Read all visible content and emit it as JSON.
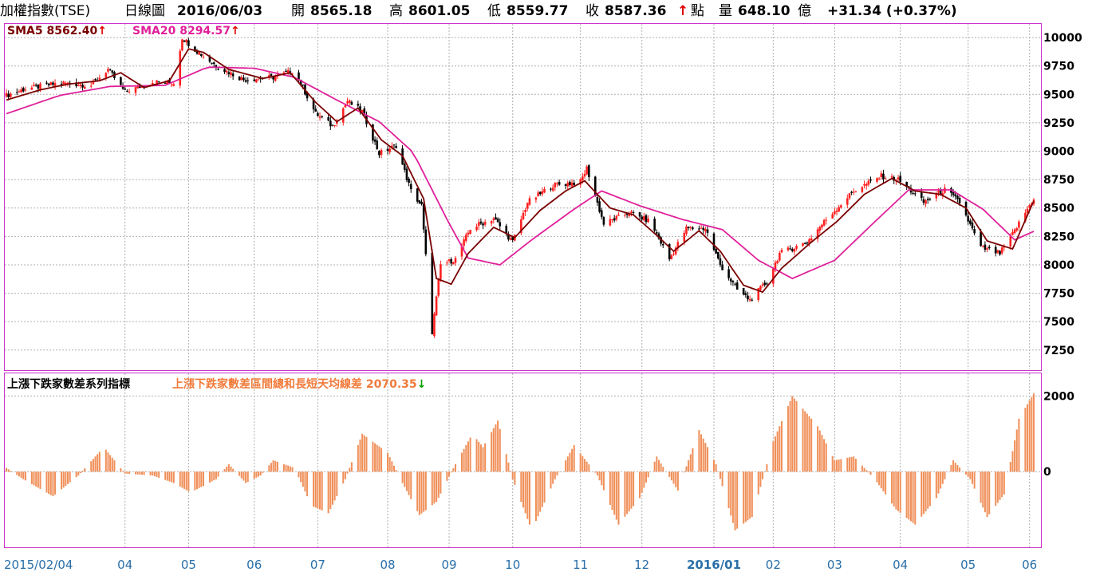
{
  "header": {
    "title": "加權指數(TSE)",
    "period": "日線圖",
    "date": "2016/06/03",
    "open_label": "開",
    "open": "8565.18",
    "high_label": "高",
    "high": "8601.05",
    "low_label": "低",
    "low": "8559.77",
    "close_label": "收",
    "close": "8587.36",
    "up_arrow": "↑",
    "point_label": "點",
    "volume_label": "量",
    "volume": "648.10",
    "volume_unit": "億",
    "change": "+31.34 (+0.37%)"
  },
  "legend_main": {
    "sma5_label": "SMA5 8562.40",
    "sma20_label": "SMA20 8294.57",
    "arrow": "↑"
  },
  "legend_sub": {
    "name": "上漲下跌家數差系列指標",
    "series_label": "上漲下跌家數差區間總和長短天均線差 2070.35",
    "arrow": "↓"
  },
  "colors": {
    "up_candle": "#ff2020",
    "down_candle": "#000000",
    "sma5": "#7a0000",
    "sma20": "#e0209a",
    "histogram": "#f0905a",
    "grid": "#b0b0b0",
    "border": "#cc33cc",
    "date_axis": "#2a6fa8",
    "down_arrow": "#00a000"
  },
  "chart_data": [
    {
      "type": "candlestick",
      "title": "加權指數(TSE) 日線圖",
      "yticks": [
        10000,
        9750,
        9500,
        9250,
        9000,
        8750,
        8500,
        8250,
        8000,
        7750,
        7500,
        7250
      ],
      "ylim": [
        7080,
        10120
      ],
      "x_start": "2015-02-04",
      "x_end": "2016-06-03",
      "xticks": [
        {
          "date": "2015-02-04",
          "label": "2015/02/04"
        },
        {
          "date": "2015-04-01",
          "label": "04"
        },
        {
          "date": "2015-05-01",
          "label": "05"
        },
        {
          "date": "2015-06-01",
          "label": "06"
        },
        {
          "date": "2015-07-01",
          "label": "07"
        },
        {
          "date": "2015-08-03",
          "label": "08"
        },
        {
          "date": "2015-09-01",
          "label": "09"
        },
        {
          "date": "2015-10-01",
          "label": "10"
        },
        {
          "date": "2015-11-02",
          "label": "11"
        },
        {
          "date": "2015-12-01",
          "label": "12"
        },
        {
          "date": "2016-01-04",
          "label": "2016/01"
        },
        {
          "date": "2016-02-01",
          "label": "02"
        },
        {
          "date": "2016-03-01",
          "label": "03"
        },
        {
          "date": "2016-04-01",
          "label": "04"
        },
        {
          "date": "2016-05-03",
          "label": "05"
        },
        {
          "date": "2016-06-01",
          "label": "06"
        }
      ],
      "close_path": [
        [
          "2015-02-04",
          9490
        ],
        [
          "2015-02-13",
          9550
        ],
        [
          "2015-03-02",
          9600
        ],
        [
          "2015-03-16",
          9580
        ],
        [
          "2015-03-24",
          9720
        ],
        [
          "2015-04-01",
          9520
        ],
        [
          "2015-04-14",
          9610
        ],
        [
          "2015-04-24",
          9600
        ],
        [
          "2015-04-28",
          10000
        ],
        [
          "2015-05-05",
          9880
        ],
        [
          "2015-05-15",
          9740
        ],
        [
          "2015-05-27",
          9630
        ],
        [
          "2015-06-10",
          9650
        ],
        [
          "2015-06-20",
          9710
        ],
        [
          "2015-06-30",
          9330
        ],
        [
          "2015-07-08",
          9220
        ],
        [
          "2015-07-15",
          9440
        ],
        [
          "2015-07-22",
          9350
        ],
        [
          "2015-07-30",
          8980
        ],
        [
          "2015-08-07",
          9050
        ],
        [
          "2015-08-14",
          8650
        ],
        [
          "2015-08-19",
          8520
        ],
        [
          "2015-08-24",
          7410
        ],
        [
          "2015-08-28",
          8000
        ],
        [
          "2015-09-04",
          8050
        ],
        [
          "2015-09-11",
          8320
        ],
        [
          "2015-09-22",
          8410
        ],
        [
          "2015-10-01",
          8200
        ],
        [
          "2015-10-08",
          8550
        ],
        [
          "2015-10-20",
          8700
        ],
        [
          "2015-11-02",
          8730
        ],
        [
          "2015-11-05",
          8850
        ],
        [
          "2015-11-13",
          8360
        ],
        [
          "2015-11-25",
          8460
        ],
        [
          "2015-12-05",
          8380
        ],
        [
          "2015-12-14",
          8050
        ],
        [
          "2015-12-22",
          8320
        ],
        [
          "2015-12-31",
          8320
        ],
        [
          "2016-01-07",
          8000
        ],
        [
          "2016-01-15",
          7780
        ],
        [
          "2016-01-21",
          7690
        ],
        [
          "2016-01-29",
          7850
        ],
        [
          "2016-02-04",
          8100
        ],
        [
          "2016-02-17",
          8200
        ],
        [
          "2016-02-26",
          8400
        ],
        [
          "2016-03-10",
          8650
        ],
        [
          "2016-03-23",
          8780
        ],
        [
          "2016-03-31",
          8750
        ],
        [
          "2016-04-12",
          8550
        ],
        [
          "2016-04-22",
          8660
        ],
        [
          "2016-04-29",
          8550
        ],
        [
          "2016-05-09",
          8150
        ],
        [
          "2016-05-18",
          8100
        ],
        [
          "2016-05-25",
          8300
        ],
        [
          "2016-06-03",
          8587.36
        ]
      ],
      "sma5_path": [
        [
          "2015-02-04",
          9450
        ],
        [
          "2015-02-20",
          9540
        ],
        [
          "2015-03-05",
          9590
        ],
        [
          "2015-03-20",
          9620
        ],
        [
          "2015-03-30",
          9690
        ],
        [
          "2015-04-10",
          9560
        ],
        [
          "2015-04-22",
          9620
        ],
        [
          "2015-05-01",
          9900
        ],
        [
          "2015-05-08",
          9870
        ],
        [
          "2015-05-20",
          9720
        ],
        [
          "2015-06-05",
          9640
        ],
        [
          "2015-06-18",
          9690
        ],
        [
          "2015-06-30",
          9430
        ],
        [
          "2015-07-10",
          9260
        ],
        [
          "2015-07-20",
          9380
        ],
        [
          "2015-07-31",
          9100
        ],
        [
          "2015-08-10",
          8960
        ],
        [
          "2015-08-20",
          8580
        ],
        [
          "2015-08-26",
          7880
        ],
        [
          "2015-09-02",
          7830
        ],
        [
          "2015-09-10",
          8100
        ],
        [
          "2015-09-22",
          8330
        ],
        [
          "2015-10-02",
          8240
        ],
        [
          "2015-10-14",
          8480
        ],
        [
          "2015-10-26",
          8650
        ],
        [
          "2015-11-04",
          8740
        ],
        [
          "2015-11-16",
          8500
        ],
        [
          "2015-11-27",
          8440
        ],
        [
          "2015-12-08",
          8260
        ],
        [
          "2015-12-16",
          8120
        ],
        [
          "2015-12-28",
          8300
        ],
        [
          "2016-01-07",
          8120
        ],
        [
          "2016-01-18",
          7820
        ],
        [
          "2016-01-27",
          7760
        ],
        [
          "2016-02-05",
          7970
        ],
        [
          "2016-02-19",
          8200
        ],
        [
          "2016-03-02",
          8380
        ],
        [
          "2016-03-15",
          8620
        ],
        [
          "2016-03-28",
          8760
        ],
        [
          "2016-04-08",
          8650
        ],
        [
          "2016-04-20",
          8620
        ],
        [
          "2016-05-02",
          8500
        ],
        [
          "2016-05-12",
          8210
        ],
        [
          "2016-05-24",
          8140
        ],
        [
          "2016-06-03",
          8562.4
        ]
      ],
      "sma20_path": [
        [
          "2015-02-04",
          9330
        ],
        [
          "2015-03-01",
          9490
        ],
        [
          "2015-03-25",
          9570
        ],
        [
          "2015-04-20",
          9580
        ],
        [
          "2015-05-10",
          9740
        ],
        [
          "2015-06-01",
          9730
        ],
        [
          "2015-06-20",
          9650
        ],
        [
          "2015-07-10",
          9450
        ],
        [
          "2015-07-30",
          9260
        ],
        [
          "2015-08-15",
          8990
        ],
        [
          "2015-08-31",
          8400
        ],
        [
          "2015-09-10",
          8060
        ],
        [
          "2015-09-25",
          8000
        ],
        [
          "2015-10-10",
          8220
        ],
        [
          "2015-10-30",
          8490
        ],
        [
          "2015-11-12",
          8650
        ],
        [
          "2015-11-30",
          8520
        ],
        [
          "2015-12-20",
          8400
        ],
        [
          "2016-01-08",
          8310
        ],
        [
          "2016-01-25",
          8040
        ],
        [
          "2016-02-10",
          7880
        ],
        [
          "2016-03-01",
          8040
        ],
        [
          "2016-03-20",
          8380
        ],
        [
          "2016-04-05",
          8660
        ],
        [
          "2016-04-25",
          8660
        ],
        [
          "2016-05-10",
          8490
        ],
        [
          "2016-05-25",
          8220
        ],
        [
          "2016-06-03",
          8294.57
        ]
      ]
    },
    {
      "type": "bar",
      "title": "上漲下跌家數差系列指標",
      "series_name": "上漲下跌家數差區間總和長短天均線差",
      "last_value": 2070.35,
      "yticks": [
        2000,
        0
      ],
      "ylim": [
        -2000,
        2600
      ],
      "profile": [
        [
          "2015-02-04",
          100
        ],
        [
          "2015-02-12",
          -200
        ],
        [
          "2015-02-26",
          -650
        ],
        [
          "2015-03-10",
          -100
        ],
        [
          "2015-03-22",
          650
        ],
        [
          "2015-04-01",
          -50
        ],
        [
          "2015-04-14",
          -100
        ],
        [
          "2015-04-24",
          -300
        ],
        [
          "2015-05-02",
          -550
        ],
        [
          "2015-05-14",
          -200
        ],
        [
          "2015-05-20",
          200
        ],
        [
          "2015-05-28",
          -300
        ],
        [
          "2015-06-04",
          -100
        ],
        [
          "2015-06-10",
          300
        ],
        [
          "2015-06-20",
          100
        ],
        [
          "2015-06-28",
          -900
        ],
        [
          "2015-07-06",
          -1100
        ],
        [
          "2015-07-14",
          -200
        ],
        [
          "2015-07-22",
          1000
        ],
        [
          "2015-08-03",
          500
        ],
        [
          "2015-08-10",
          -300
        ],
        [
          "2015-08-18",
          -1150
        ],
        [
          "2015-08-26",
          -800
        ],
        [
          "2015-09-04",
          200
        ],
        [
          "2015-09-12",
          1000
        ],
        [
          "2015-09-17",
          650
        ],
        [
          "2015-09-24",
          1350
        ],
        [
          "2015-10-01",
          -200
        ],
        [
          "2015-10-10",
          -1550
        ],
        [
          "2015-10-21",
          -200
        ],
        [
          "2015-10-30",
          700
        ],
        [
          "2015-11-10",
          -100
        ],
        [
          "2015-11-20",
          -1400
        ],
        [
          "2015-11-30",
          -700
        ],
        [
          "2015-12-08",
          400
        ],
        [
          "2015-12-18",
          -500
        ],
        [
          "2015-12-28",
          1100
        ],
        [
          "2016-01-05",
          200
        ],
        [
          "2016-01-14",
          -1550
        ],
        [
          "2016-01-22",
          -1200
        ],
        [
          "2016-02-01",
          800
        ],
        [
          "2016-02-10",
          2000
        ],
        [
          "2016-02-22",
          1200
        ],
        [
          "2016-03-01",
          300
        ],
        [
          "2016-03-10",
          400
        ],
        [
          "2016-03-20",
          -200
        ],
        [
          "2016-03-30",
          -1000
        ],
        [
          "2016-04-08",
          -1400
        ],
        [
          "2016-04-18",
          -700
        ],
        [
          "2016-04-26",
          300
        ],
        [
          "2016-05-04",
          -200
        ],
        [
          "2016-05-12",
          -1200
        ],
        [
          "2016-05-20",
          -600
        ],
        [
          "2016-05-27",
          1400
        ],
        [
          "2016-06-03",
          2070.35
        ]
      ]
    }
  ]
}
